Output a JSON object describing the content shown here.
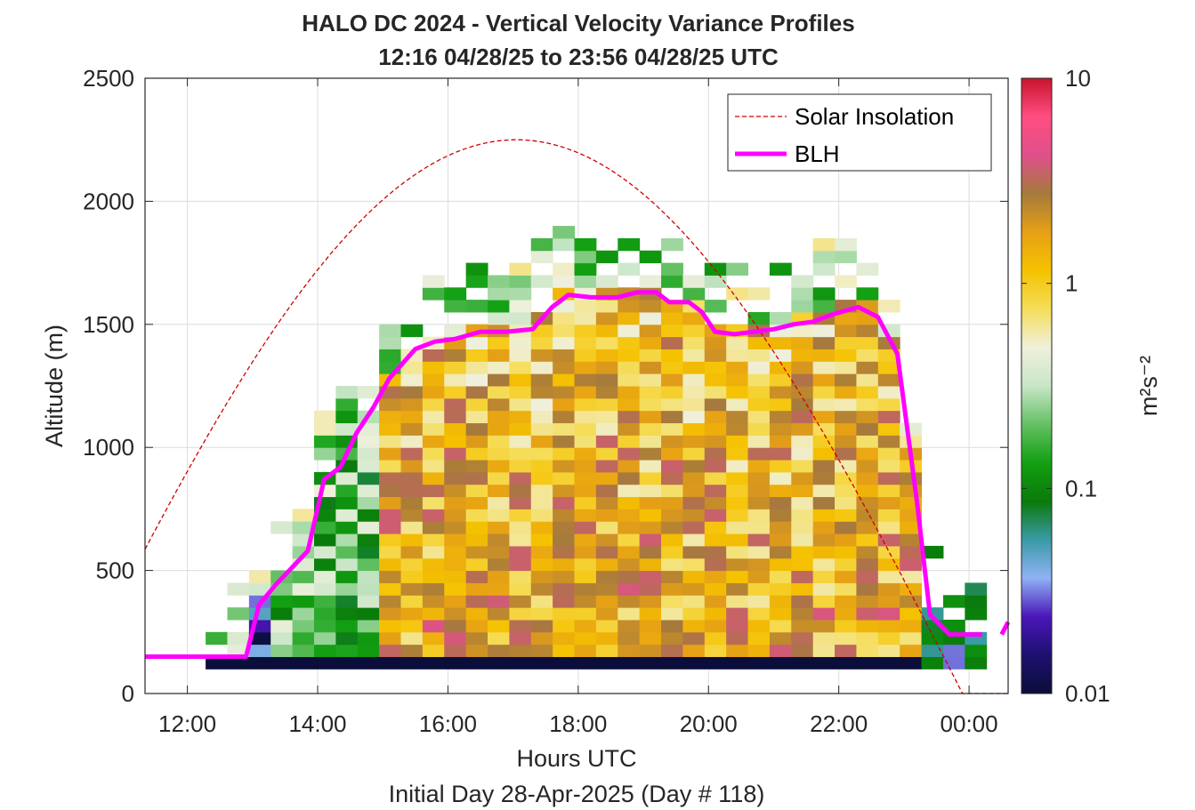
{
  "chart_data": {
    "type": "heatmap",
    "title": "HALO DC 2024 - Vertical Velocity Variance Profiles",
    "subtitle": "12:16 04/28/25 to 23:56 04/28/25  UTC",
    "xlabel": "Hours UTC",
    "xlabel2": "Initial Day 28-Apr-2025 (Day # 118)",
    "ylabel": "Altitude (m)",
    "xlim": [
      11.35,
      24.6
    ],
    "ylim": [
      0,
      2500
    ],
    "x_ticks": [
      12,
      14,
      16,
      18,
      20,
      22,
      24
    ],
    "x_tick_labels": [
      "12:00",
      "14:00",
      "16:00",
      "18:00",
      "20:00",
      "22:00",
      "00:00"
    ],
    "y_ticks": [
      0,
      500,
      1000,
      1500,
      2000,
      2500
    ],
    "y_tick_labels": [
      "0",
      "500",
      "1000",
      "1500",
      "2000",
      "2500"
    ],
    "grid": true,
    "colorbar": {
      "label": "m²s⁻²",
      "scale": "log",
      "range": [
        0.01,
        10
      ],
      "ticks": [
        0.01,
        0.1,
        1,
        10
      ],
      "tick_labels": [
        "0.01",
        "0.1",
        "1",
        "10"
      ],
      "colors": [
        "#0b0e3a",
        "#1e1070",
        "#4a16b8",
        "#8fb2f5",
        "#3a9aa6",
        "#0a7a0a",
        "#12a012",
        "#64c064",
        "#c8e6c8",
        "#f0f0dc",
        "#f5dd5a",
        "#f5c200",
        "#e6a016",
        "#a57a3c",
        "#e0508a",
        "#ff4d80",
        "#c8142d"
      ]
    },
    "legend": {
      "placement": "top-right",
      "entries": [
        {
          "label": "Solar Insolation",
          "style": "dashed",
          "color": "#d00000"
        },
        {
          "label": "BLH",
          "style": "solid",
          "color": "#ff00ff"
        }
      ]
    },
    "heatmap": {
      "x_start_hour": 12.28,
      "x_step_hour": 0.333,
      "y_start_m": 100,
      "y_step_m": 50,
      "note": "columns of log10 variance profiles; values shown as colors"
    },
    "series": [
      {
        "name": "BLH",
        "x": [
          11.35,
          12.9,
          13.1,
          13.35,
          13.85,
          14.1,
          14.35,
          14.6,
          14.85,
          15.1,
          15.5,
          15.8,
          16.1,
          16.5,
          16.9,
          17.3,
          17.6,
          17.85,
          18.2,
          18.6,
          18.9,
          19.2,
          19.4,
          19.7,
          19.9,
          20.1,
          20.4,
          20.7,
          21.0,
          21.3,
          21.6,
          21.9,
          22.3,
          22.6,
          22.9,
          23.2,
          23.4,
          23.7,
          23.9,
          24.2
        ],
        "y": [
          150,
          150,
          360,
          440,
          580,
          870,
          920,
          1060,
          1160,
          1280,
          1400,
          1430,
          1440,
          1470,
          1470,
          1480,
          1570,
          1620,
          1610,
          1610,
          1630,
          1630,
          1590,
          1590,
          1550,
          1470,
          1460,
          1470,
          1480,
          1500,
          1510,
          1540,
          1570,
          1530,
          1380,
          780,
          320,
          240,
          240,
          240
        ],
        "extra_segment": {
          "x": [
            24.5,
            24.6
          ],
          "y": [
            240,
            290
          ]
        }
      },
      {
        "name": "Solar Insolation",
        "peak_hour": 17.05,
        "peak_altitude": 2250,
        "zero_hour": 23.9
      }
    ]
  }
}
